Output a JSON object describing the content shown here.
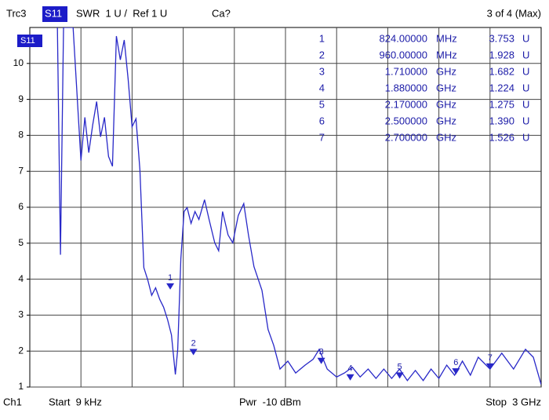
{
  "chart_data": {
    "type": "line",
    "header": {
      "scale": "SWR  1 U /  Ref 1 U",
      "cal": "Ca?",
      "trace_count": "3 of 4 (Max)",
      "parameter": "S11"
    },
    "footer": {
      "channel": "Ch1",
      "start": "Start  9 kHz",
      "power": "Pwr  -10 dBm",
      "stop": "Stop  3 GHz"
    },
    "trace_badge": "S11",
    "xlim": [
      9e-06,
      3
    ],
    "ylim": [
      1,
      11
    ],
    "yticks": [
      1,
      2,
      3,
      4,
      5,
      6,
      7,
      8,
      9,
      10
    ],
    "grid": true,
    "x": [
      0.162,
      0.18,
      0.198,
      0.254,
      0.3,
      0.323,
      0.346,
      0.369,
      0.392,
      0.415,
      0.438,
      0.462,
      0.485,
      0.508,
      0.531,
      0.554,
      0.577,
      0.6,
      0.623,
      0.646,
      0.669,
      0.692,
      0.715,
      0.738,
      0.762,
      0.785,
      0.808,
      0.831,
      0.854,
      0.868,
      0.886,
      0.905,
      0.923,
      0.946,
      0.969,
      0.992,
      1.025,
      1.052,
      1.085,
      1.108,
      1.131,
      1.163,
      1.191,
      1.223,
      1.255,
      1.283,
      1.315,
      1.362,
      1.398,
      1.431,
      1.468,
      1.514,
      1.56,
      1.615,
      1.662,
      1.698,
      1.745,
      1.8,
      1.846,
      1.892,
      1.938,
      1.985,
      2.031,
      2.077,
      2.123,
      2.169,
      2.215,
      2.262,
      2.308,
      2.354,
      2.4,
      2.446,
      2.492,
      2.538,
      2.585,
      2.631,
      2.7,
      2.769,
      2.838,
      2.908,
      2.954,
      3.0
    ],
    "series": [
      {
        "name": "Trc3",
        "color": "#2828c8",
        "values": [
          11,
          4.68,
          11,
          11,
          7.3,
          8.5,
          7.52,
          8.29,
          8.94,
          7.96,
          8.5,
          7.41,
          7.14,
          10.76,
          10.1,
          10.65,
          9.56,
          8.24,
          8.46,
          7.04,
          4.32,
          3.98,
          3.55,
          3.76,
          3.44,
          3.22,
          2.88,
          2.45,
          1.35,
          2.05,
          4.57,
          5.88,
          5.99,
          5.55,
          5.88,
          5.66,
          6.21,
          5.66,
          5.01,
          4.79,
          5.88,
          5.23,
          5.01,
          5.77,
          6.1,
          5.23,
          4.35,
          3.69,
          2.6,
          2.16,
          1.5,
          1.72,
          1.39,
          1.61,
          1.77,
          2.05,
          1.5,
          1.28,
          1.39,
          1.55,
          1.28,
          1.5,
          1.24,
          1.5,
          1.24,
          1.5,
          1.18,
          1.46,
          1.18,
          1.5,
          1.24,
          1.61,
          1.33,
          1.72,
          1.33,
          1.83,
          1.5,
          1.94,
          1.5,
          2.05,
          1.83,
          1.07
        ]
      }
    ],
    "markers": [
      {
        "number": "1",
        "x": 0.824,
        "x_label": "824.00000",
        "x_unit": "MHz",
        "value": 3.753,
        "value_label": "3.753",
        "unit": "U"
      },
      {
        "number": "2",
        "x": 0.96,
        "x_label": "960.00000",
        "x_unit": "MHz",
        "value": 1.928,
        "value_label": "1.928",
        "unit": "U"
      },
      {
        "number": "3",
        "x": 1.71,
        "x_label": "1.710000",
        "x_unit": "GHz",
        "value": 1.682,
        "value_label": "1.682",
        "unit": "U"
      },
      {
        "number": "4",
        "x": 1.88,
        "x_label": "1.880000",
        "x_unit": "GHz",
        "value": 1.224,
        "value_label": "1.224",
        "unit": "U"
      },
      {
        "number": "5",
        "x": 2.17,
        "x_label": "2.170000",
        "x_unit": "GHz",
        "value": 1.275,
        "value_label": "1.275",
        "unit": "U"
      },
      {
        "number": "6",
        "x": 2.5,
        "x_label": "2.500000",
        "x_unit": "GHz",
        "value": 1.39,
        "value_label": "1.390",
        "unit": "U"
      },
      {
        "number": "7",
        "x": 2.7,
        "x_label": "2.700000",
        "x_unit": "GHz",
        "value": 1.526,
        "value_label": "1.526",
        "unit": "U"
      }
    ]
  }
}
